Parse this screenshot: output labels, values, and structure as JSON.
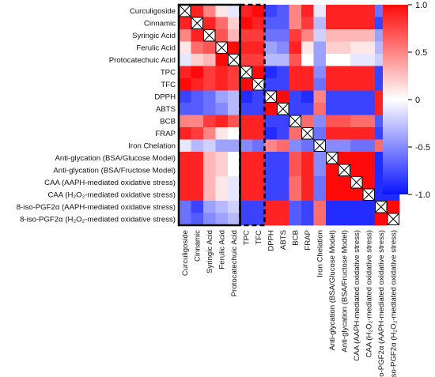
{
  "chart_data": {
    "type": "heatmap",
    "title": "",
    "xlabel": "",
    "ylabel": "",
    "labels": [
      "Curculigoside",
      "Cinnamic",
      "Syringic Acid",
      "Ferulic Acid",
      "Protocatechuic Acid",
      "TPC",
      "TFC",
      "DPPH",
      "ABTS",
      "BCB",
      "FRAP",
      "Iron Chelation",
      "Anti-glycation (BSA/Glucose Model)",
      "Anti-glycation (BSA/Fructose Model)",
      "CAA (AAPH-mediated oxidative stress)",
      "CAA (H₂O₂-mediated oxidative stress)",
      "8-iso-PGF2α (AAPH-mediated oxidative stress)",
      "8-iso-PGF2α (H₂O₂-mediated oxidative stress)"
    ],
    "values": [
      [
        null,
        0.9,
        0.5,
        0.1,
        -0.1,
        0.9,
        1.0,
        -0.8,
        -0.7,
        0.5,
        0.9,
        -0.1,
        0.9,
        0.9,
        0.9,
        0.9,
        -0.6,
        -0.6
      ],
      [
        0.9,
        null,
        0.9,
        0.6,
        0.2,
        1.0,
        0.9,
        -0.7,
        -0.7,
        0.5,
        0.8,
        -0.3,
        0.9,
        0.9,
        0.9,
        0.9,
        -0.8,
        -0.7
      ],
      [
        0.5,
        0.9,
        null,
        0.7,
        0.3,
        0.8,
        0.8,
        -0.6,
        -0.6,
        0.8,
        0.5,
        -0.2,
        0.3,
        0.3,
        0.3,
        0.3,
        -0.4,
        -0.5
      ],
      [
        0.1,
        0.6,
        0.7,
        null,
        1.0,
        0.9,
        0.9,
        -0.4,
        -0.5,
        0.9,
        0.1,
        -0.4,
        0.2,
        0.2,
        0.1,
        0.1,
        -0.3,
        -0.4
      ],
      [
        -0.1,
        0.2,
        0.3,
        1.0,
        null,
        0.8,
        0.8,
        -0.3,
        -0.3,
        0.7,
        0.0,
        -0.4,
        0.0,
        0.0,
        -0.1,
        -0.1,
        -0.2,
        -0.3
      ],
      [
        0.9,
        1.0,
        0.8,
        0.9,
        0.8,
        null,
        1.0,
        -0.9,
        -0.8,
        0.9,
        0.9,
        -0.5,
        0.9,
        0.9,
        0.9,
        0.9,
        -0.8,
        -0.8
      ],
      [
        1.0,
        0.9,
        0.8,
        0.9,
        0.8,
        1.0,
        null,
        -0.8,
        -0.8,
        0.9,
        0.9,
        -0.6,
        0.9,
        0.9,
        0.9,
        0.9,
        -0.8,
        -0.8
      ],
      [
        -0.8,
        -0.7,
        -0.6,
        -0.4,
        -0.3,
        -0.9,
        -0.8,
        null,
        1.0,
        -0.8,
        -0.9,
        0.5,
        -0.8,
        -0.8,
        -0.8,
        -0.8,
        0.9,
        0.9
      ],
      [
        -0.7,
        -0.7,
        -0.6,
        -0.5,
        -0.3,
        -0.8,
        -0.8,
        1.0,
        null,
        -0.8,
        -0.8,
        0.6,
        -0.8,
        -0.8,
        -0.8,
        -0.8,
        0.9,
        0.9
      ],
      [
        0.5,
        0.5,
        0.8,
        0.9,
        0.7,
        0.9,
        0.9,
        -0.8,
        -0.8,
        null,
        0.6,
        -0.5,
        0.7,
        0.7,
        0.6,
        0.6,
        -0.7,
        -0.7
      ],
      [
        0.9,
        0.8,
        0.5,
        0.1,
        0.0,
        0.9,
        0.9,
        -0.9,
        -0.8,
        0.6,
        null,
        -0.6,
        0.9,
        0.9,
        0.9,
        0.9,
        -0.8,
        -0.8
      ],
      [
        -0.1,
        -0.3,
        -0.2,
        -0.4,
        -0.4,
        -0.5,
        -0.6,
        0.5,
        0.6,
        -0.5,
        -0.6,
        null,
        -0.5,
        -0.5,
        -0.6,
        -0.6,
        0.6,
        0.6
      ],
      [
        0.9,
        0.9,
        0.3,
        0.2,
        0.0,
        0.9,
        0.9,
        -0.8,
        -0.8,
        0.7,
        0.9,
        -0.5,
        null,
        1.0,
        1.0,
        1.0,
        -0.9,
        -0.9
      ],
      [
        0.9,
        0.9,
        0.3,
        0.2,
        0.0,
        0.9,
        0.9,
        -0.8,
        -0.8,
        0.7,
        0.9,
        -0.5,
        1.0,
        null,
        1.0,
        1.0,
        -0.9,
        -0.9
      ],
      [
        0.9,
        0.9,
        0.3,
        0.1,
        -0.1,
        0.9,
        0.9,
        -0.8,
        -0.8,
        0.6,
        0.9,
        -0.6,
        1.0,
        1.0,
        null,
        1.0,
        -0.9,
        -0.9
      ],
      [
        0.9,
        0.9,
        0.3,
        0.1,
        -0.1,
        0.9,
        0.9,
        -0.8,
        -0.8,
        0.6,
        0.9,
        -0.6,
        1.0,
        1.0,
        1.0,
        null,
        -0.9,
        -0.9
      ],
      [
        -0.6,
        -0.8,
        -0.4,
        -0.3,
        -0.2,
        -0.8,
        -0.8,
        0.9,
        0.9,
        -0.7,
        -0.8,
        0.6,
        -0.9,
        -0.9,
        -0.9,
        -0.9,
        null,
        1.0
      ],
      [
        -0.6,
        -0.7,
        -0.5,
        -0.4,
        -0.3,
        -0.8,
        -0.8,
        0.9,
        0.9,
        -0.7,
        -0.8,
        0.6,
        -0.9,
        -0.9,
        -0.9,
        -0.9,
        1.0,
        null
      ]
    ],
    "colorbar": {
      "range": [
        -1.0,
        1.0
      ],
      "ticks": [
        "1.0",
        "0.5",
        "0",
        "-0.5",
        "-1.0"
      ],
      "tick_values": [
        1.0,
        0.5,
        0,
        -0.5,
        -1.0
      ],
      "colors": {
        "negative": "#0a14ff",
        "zero": "#ffffff",
        "positive": "#ff0a0a"
      }
    },
    "highlight_boxes": [
      {
        "style": "solid",
        "start": 0,
        "end": 4
      },
      {
        "style": "dashed",
        "start": 5,
        "end": 6
      }
    ],
    "diagonal_marker": "cross"
  }
}
